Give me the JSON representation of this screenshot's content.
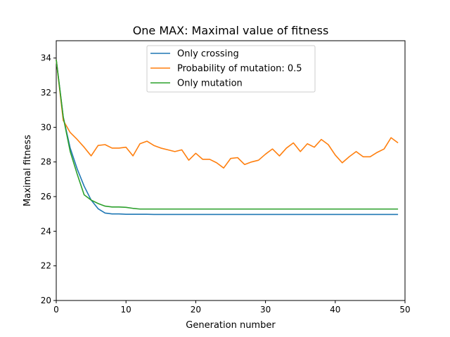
{
  "chart_data": {
    "type": "line",
    "title": "One MAX: Maximal value of fitness",
    "xlabel": "Generation number",
    "ylabel": "Maximal fitness",
    "xlim": [
      0,
      50
    ],
    "ylim": [
      20,
      35
    ],
    "xticks": [
      0,
      10,
      20,
      30,
      40,
      50
    ],
    "yticks": [
      20,
      22,
      24,
      26,
      28,
      30,
      32,
      34
    ],
    "grid": false,
    "legend_position": "upper center",
    "x": [
      0,
      1,
      2,
      3,
      4,
      5,
      6,
      7,
      8,
      9,
      10,
      11,
      12,
      13,
      14,
      15,
      16,
      17,
      18,
      19,
      20,
      21,
      22,
      23,
      24,
      25,
      26,
      27,
      28,
      29,
      30,
      31,
      32,
      33,
      34,
      35,
      36,
      37,
      38,
      39,
      40,
      41,
      42,
      43,
      44,
      45,
      46,
      47,
      48,
      49
    ],
    "series": [
      {
        "name": "Only crossing",
        "color": "#1f77b4",
        "values": [
          33.9,
          30.6,
          28.8,
          27.6,
          26.6,
          25.8,
          25.3,
          25.05,
          25.0,
          25.0,
          24.98,
          24.98,
          24.98,
          24.98,
          24.97,
          24.97,
          24.97,
          24.97,
          24.97,
          24.97,
          24.97,
          24.97,
          24.97,
          24.97,
          24.97,
          24.97,
          24.97,
          24.97,
          24.97,
          24.97,
          24.97,
          24.97,
          24.97,
          24.97,
          24.97,
          24.97,
          24.97,
          24.97,
          24.97,
          24.97,
          24.97,
          24.97,
          24.97,
          24.97,
          24.97,
          24.97,
          24.97,
          24.97,
          24.97,
          24.97
        ]
      },
      {
        "name": "Probability of mutation: 0.5",
        "color": "#ff7f0e",
        "values": [
          33.9,
          30.4,
          29.7,
          29.3,
          28.85,
          28.35,
          28.95,
          29.0,
          28.8,
          28.8,
          28.85,
          28.35,
          29.05,
          29.2,
          28.95,
          28.8,
          28.7,
          28.6,
          28.7,
          28.1,
          28.5,
          28.15,
          28.15,
          27.95,
          27.65,
          28.2,
          28.25,
          27.85,
          28.0,
          28.1,
          28.45,
          28.75,
          28.35,
          28.8,
          29.1,
          28.6,
          29.05,
          28.85,
          29.3,
          29.0,
          28.4,
          27.95,
          28.3,
          28.6,
          28.3,
          28.3,
          28.55,
          28.75,
          29.4,
          29.1
        ]
      },
      {
        "name": "Only mutation",
        "color": "#2ca02c",
        "values": [
          33.9,
          30.6,
          28.6,
          27.3,
          26.1,
          25.8,
          25.6,
          25.45,
          25.4,
          25.4,
          25.38,
          25.32,
          25.28,
          25.28,
          25.28,
          25.28,
          25.28,
          25.28,
          25.28,
          25.28,
          25.28,
          25.28,
          25.28,
          25.28,
          25.28,
          25.28,
          25.28,
          25.28,
          25.28,
          25.28,
          25.28,
          25.28,
          25.28,
          25.28,
          25.28,
          25.28,
          25.28,
          25.28,
          25.28,
          25.28,
          25.28,
          25.28,
          25.28,
          25.28,
          25.28,
          25.28,
          25.28,
          25.28,
          25.28,
          25.28
        ]
      }
    ]
  }
}
